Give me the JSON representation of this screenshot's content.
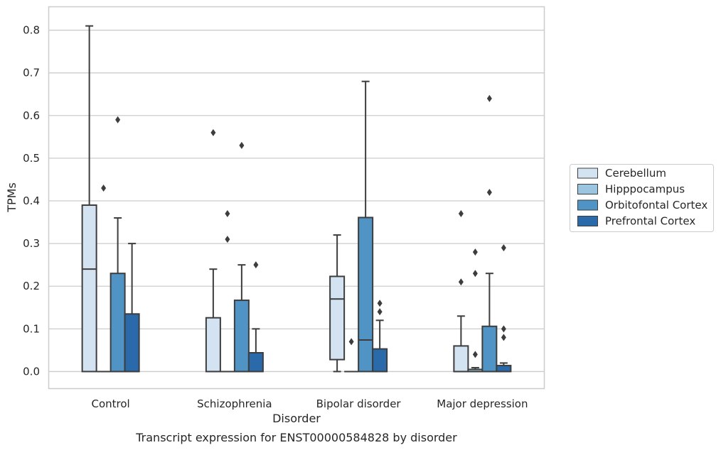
{
  "chart_data": {
    "type": "boxplot",
    "caption": "Transcript expression for ENST00000584828 by disorder",
    "xlabel": "Disorder",
    "ylabel": "TPMs",
    "ylim": [
      -0.04,
      0.855
    ],
    "yticks": [
      0.0,
      0.1,
      0.2,
      0.3,
      0.4,
      0.5,
      0.6,
      0.7,
      0.8
    ],
    "ytick_labels": [
      "0.0",
      "0.1",
      "0.2",
      "0.3",
      "0.4",
      "0.5",
      "0.6",
      "0.7",
      "0.8"
    ],
    "grid": "horizontal",
    "legend_position": "right",
    "categories": [
      "Control",
      "Schizophrenia",
      "Bipolar disorder",
      "Major depression"
    ],
    "series": [
      {
        "name": "Cerebellum",
        "color": "#d4e3f2",
        "boxes": [
          {
            "q1": 0.0,
            "median": 0.24,
            "q3": 0.39,
            "whisker_low": 0.0,
            "whisker_high": 0.81,
            "outliers": []
          },
          {
            "q1": 0.0,
            "median": 0.0,
            "q3": 0.126,
            "whisker_low": 0.0,
            "whisker_high": 0.24,
            "outliers": [
              0.56
            ]
          },
          {
            "q1": 0.028,
            "median": 0.17,
            "q3": 0.223,
            "whisker_low": 0.0,
            "whisker_high": 0.32,
            "outliers": []
          },
          {
            "q1": 0.0,
            "median": 0.0,
            "q3": 0.06,
            "whisker_low": 0.0,
            "whisker_high": 0.13,
            "outliers": [
              0.21,
              0.37
            ]
          }
        ]
      },
      {
        "name": "Hipppocampus",
        "color": "#9ac4e0",
        "boxes": [
          {
            "q1": 0.0,
            "median": 0.0,
            "q3": 0.0,
            "whisker_low": 0.0,
            "whisker_high": 0.0,
            "outliers": [
              0.43
            ]
          },
          {
            "q1": 0.0,
            "median": 0.0,
            "q3": 0.0,
            "whisker_low": 0.0,
            "whisker_high": 0.0,
            "outliers": [
              0.31,
              0.37
            ]
          },
          {
            "q1": 0.0,
            "median": 0.0,
            "q3": 0.0,
            "whisker_low": 0.0,
            "whisker_high": 0.0,
            "outliers": [
              0.07
            ]
          },
          {
            "q1": 0.0,
            "median": 0.0,
            "q3": 0.005,
            "whisker_low": 0.0,
            "whisker_high": 0.009,
            "outliers": [
              0.04,
              0.23,
              0.28
            ]
          }
        ]
      },
      {
        "name": "Orbitofontal Cortex",
        "color": "#4f94c4",
        "boxes": [
          {
            "q1": 0.0,
            "median": 0.0,
            "q3": 0.23,
            "whisker_low": 0.0,
            "whisker_high": 0.36,
            "outliers": [
              0.59
            ]
          },
          {
            "q1": 0.0,
            "median": 0.0,
            "q3": 0.167,
            "whisker_low": 0.0,
            "whisker_high": 0.25,
            "outliers": [
              0.53
            ]
          },
          {
            "q1": 0.0,
            "median": 0.074,
            "q3": 0.361,
            "whisker_low": 0.0,
            "whisker_high": 0.68,
            "outliers": []
          },
          {
            "q1": 0.0,
            "median": 0.0,
            "q3": 0.106,
            "whisker_low": 0.0,
            "whisker_high": 0.23,
            "outliers": [
              0.42,
              0.64
            ]
          }
        ]
      },
      {
        "name": "Prefrontal Cortex",
        "color": "#2a6aab",
        "boxes": [
          {
            "q1": 0.0,
            "median": 0.0,
            "q3": 0.135,
            "whisker_low": 0.0,
            "whisker_high": 0.3,
            "outliers": []
          },
          {
            "q1": 0.0,
            "median": 0.0,
            "q3": 0.044,
            "whisker_low": 0.0,
            "whisker_high": 0.1,
            "outliers": [
              0.25
            ]
          },
          {
            "q1": 0.0,
            "median": 0.0,
            "q3": 0.053,
            "whisker_low": 0.0,
            "whisker_high": 0.12,
            "outliers": [
              0.14,
              0.16
            ]
          },
          {
            "q1": 0.0,
            "median": 0.0,
            "q3": 0.014,
            "whisker_low": 0.0,
            "whisker_high": 0.02,
            "outliers": [
              0.08,
              0.1,
              0.29
            ]
          }
        ]
      }
    ]
  }
}
